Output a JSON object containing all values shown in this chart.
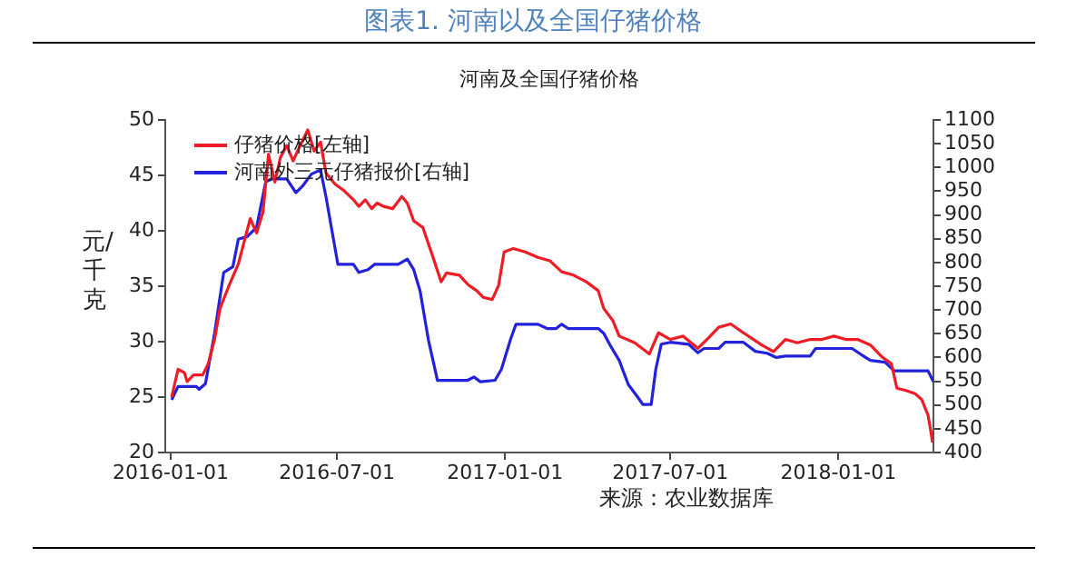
{
  "chart_data": {
    "type": "line",
    "title": "图表1. 河南以及全国仔猪价格",
    "subtitle": "河南及全国仔猪价格",
    "ylabel": "元/千克",
    "annotations": [
      "来源：农业数据库"
    ],
    "xlim": [
      "2015-12-26",
      "2018-04-15"
    ],
    "xticks": [
      "2016-01-01",
      "2016-07-01",
      "2017-01-01",
      "2017-07-01",
      "2018-01-01"
    ],
    "ylim": [
      20,
      50
    ],
    "yticks": [
      20,
      25,
      30,
      35,
      40,
      45,
      50
    ],
    "y2lim": [
      400,
      1100
    ],
    "y2ticks": [
      400,
      450,
      500,
      550,
      600,
      650,
      700,
      750,
      800,
      850,
      900,
      950,
      1000,
      1050,
      1100
    ],
    "grid": false,
    "legend": "top left",
    "marker": "none",
    "line_style": "solid",
    "series": [
      {
        "name": "仔猪价格[左轴]",
        "color": "#ee1c25",
        "x": [
          "2016-01-02",
          "2016-01-09",
          "2016-01-16",
          "2016-01-19",
          "2016-01-26",
          "2016-02-05",
          "2016-02-11",
          "2016-02-18",
          "2016-02-24",
          "2016-03-05",
          "2016-03-15",
          "2016-03-28",
          "2016-04-04",
          "2016-04-11",
          "2016-04-17",
          "2016-04-24",
          "2016-04-30",
          "2016-05-07",
          "2016-05-14",
          "2016-05-20",
          "2016-05-30",
          "2016-06-06",
          "2016-06-13",
          "2016-06-19",
          "2016-06-29",
          "2016-07-09",
          "2016-07-19",
          "2016-07-25",
          "2016-08-01",
          "2016-08-08",
          "2016-08-14",
          "2016-08-21",
          "2016-08-31",
          "2016-09-10",
          "2016-09-16",
          "2016-09-23",
          "2016-10-03",
          "2016-10-13",
          "2016-10-23",
          "2016-10-29",
          "2016-11-12",
          "2016-11-22",
          "2016-12-01",
          "2016-12-08",
          "2016-12-18",
          "2016-12-25",
          "2016-12-31",
          "2017-01-10",
          "2017-01-23",
          "2017-02-06",
          "2017-02-19",
          "2017-03-04",
          "2017-03-17",
          "2017-03-31",
          "2017-04-13",
          "2017-04-19",
          "2017-04-29",
          "2017-05-06",
          "2017-05-23",
          "2017-06-08",
          "2017-06-18",
          "2017-07-01",
          "2017-07-15",
          "2017-07-31",
          "2017-08-10",
          "2017-08-23",
          "2017-09-05",
          "2017-09-19",
          "2017-10-09",
          "2017-10-22",
          "2017-11-04",
          "2017-11-17",
          "2017-12-01",
          "2017-12-14",
          "2017-12-27",
          "2018-01-09",
          "2018-01-22",
          "2018-02-05",
          "2018-02-18",
          "2018-02-28",
          "2018-03-06",
          "2018-03-16",
          "2018-03-26",
          "2018-04-02",
          "2018-04-09",
          "2018-04-12",
          "2018-04-14"
        ],
        "values": [
          25.0,
          27.5,
          27.2,
          26.4,
          27,
          27,
          28,
          30.2,
          33,
          35.1,
          37,
          41.1,
          39.8,
          41.7,
          46.9,
          44.4,
          46.6,
          47.7,
          46.3,
          47.4,
          49.1,
          47.2,
          48,
          45.2,
          44.2,
          43.6,
          42.8,
          42.2,
          42.8,
          42,
          42.5,
          42.2,
          42,
          43.1,
          42.5,
          40.9,
          40.3,
          37.9,
          35.4,
          36.2,
          36,
          35.1,
          34.6,
          34,
          33.8,
          35.1,
          38.1,
          38.4,
          38.1,
          37.6,
          37.3,
          36.3,
          36,
          35.4,
          34.6,
          33,
          31.9,
          30.5,
          29.9,
          28.9,
          30.8,
          30.2,
          30.5,
          29.4,
          30.2,
          31.3,
          31.6,
          30.8,
          29.7,
          29.1,
          30.2,
          29.9,
          30.2,
          30.2,
          30.5,
          30.2,
          30.2,
          29.7,
          28.6,
          28.0,
          25.8,
          25.6,
          25.3,
          24.8,
          23.4,
          22.0,
          20.9
        ]
      },
      {
        "name": "河南外三元仔猪报价[右轴]",
        "color": "#2222dd",
        "axis": "y2",
        "x": [
          "2016-01-02",
          "2016-01-09",
          "2016-01-19",
          "2016-01-29",
          "2016-02-01",
          "2016-02-08",
          "2016-02-18",
          "2016-02-28",
          "2016-03-09",
          "2016-03-15",
          "2016-03-25",
          "2016-04-04",
          "2016-04-14",
          "2016-04-21",
          "2016-05-07",
          "2016-05-17",
          "2016-05-24",
          "2016-06-03",
          "2016-06-13",
          "2016-06-19",
          "2016-07-02",
          "2016-07-19",
          "2016-07-25",
          "2016-08-04",
          "2016-08-11",
          "2016-09-06",
          "2016-09-16",
          "2016-09-23",
          "2016-09-30",
          "2016-10-09",
          "2016-10-19",
          "2016-10-29",
          "2016-11-21",
          "2016-11-28",
          "2016-12-05",
          "2016-12-21",
          "2016-12-28",
          "2017-01-07",
          "2017-01-13",
          "2017-01-23",
          "2017-02-06",
          "2017-02-16",
          "2017-02-26",
          "2017-03-04",
          "2017-03-11",
          "2017-04-13",
          "2017-04-19",
          "2017-04-26",
          "2017-05-06",
          "2017-05-16",
          "2017-05-26",
          "2017-06-01",
          "2017-06-10",
          "2017-06-15",
          "2017-06-21",
          "2017-07-01",
          "2017-07-21",
          "2017-07-31",
          "2017-08-07",
          "2017-08-23",
          "2017-08-30",
          "2017-09-19",
          "2017-10-02",
          "2017-10-15",
          "2017-10-25",
          "2017-11-04",
          "2017-12-01",
          "2017-12-07",
          "2018-01-16",
          "2018-01-26",
          "2018-02-05",
          "2018-02-21",
          "2018-03-03",
          "2018-04-09",
          "2018-04-15"
        ],
        "values": [
          511,
          539,
          539,
          539,
          533,
          545,
          651,
          779,
          791,
          849,
          855,
          874,
          970,
          976,
          976,
          947,
          960,
          986,
          995,
          938,
          796,
          796,
          779,
          785,
          796,
          796,
          807,
          785,
          740,
          638,
          552,
          552,
          552,
          559,
          549,
          552,
          575,
          638,
          670,
          670,
          670,
          661,
          661,
          670,
          661,
          661,
          651,
          626,
          594,
          543,
          517,
          501,
          501,
          575,
          628,
          632,
          628,
          610,
          619,
          619,
          632,
          632,
          613,
          609,
          600,
          603,
          603,
          619,
          619,
          606,
          594,
          590,
          572,
          572,
          549
        ]
      }
    ]
  }
}
